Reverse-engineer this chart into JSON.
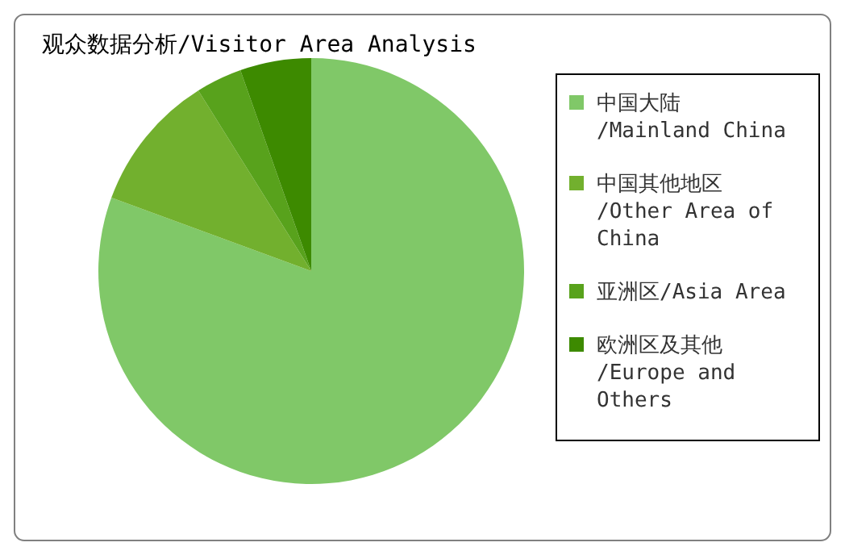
{
  "chart_data": {
    "type": "pie",
    "title": "观众数据分析/Visitor Area Analysis",
    "categories": [
      "中国大陆/Mainland China",
      "中国其他地区/Other Area of China",
      "亚洲区/Asia Area",
      "欧洲区及其他/Europe and Others"
    ],
    "values": [
      80.6,
      10.5,
      3.5,
      5.4
    ],
    "colors": [
      "#80c868",
      "#72b02e",
      "#58a21c",
      "#3d8a00"
    ],
    "legend": "right"
  }
}
